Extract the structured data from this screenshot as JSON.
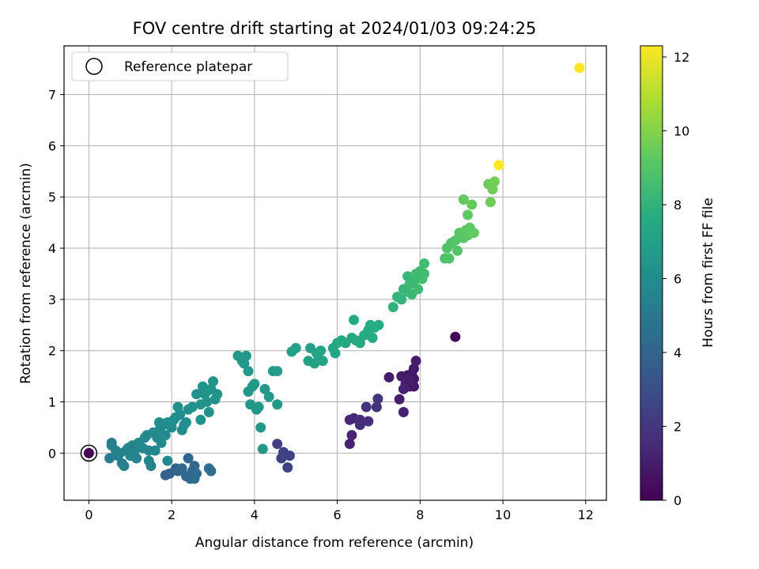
{
  "chart_data": {
    "type": "scatter",
    "title": "FOV centre drift starting at 2024/01/03 09:24:25",
    "xlabel": "Angular distance from reference (arcmin)",
    "ylabel": "Rotation from reference (arcmin)",
    "xlim": [
      -0.6,
      12.5
    ],
    "ylim": [
      -0.92,
      7.95
    ],
    "xticks": [
      0,
      2,
      4,
      6,
      8,
      10,
      12
    ],
    "yticks": [
      0,
      1,
      2,
      3,
      4,
      5,
      6,
      7
    ],
    "grid": true,
    "legend": {
      "position": "upper-left",
      "entries": [
        "Reference platepar"
      ]
    },
    "reference_point": {
      "x": 0,
      "y": 0
    },
    "colorbar": {
      "label": "Hours from first FF file",
      "range": [
        0,
        12.3
      ],
      "ticks": [
        0,
        2,
        4,
        6,
        8,
        10,
        12
      ],
      "colormap": "viridis"
    },
    "points": [
      [
        0,
        0,
        0.1
      ],
      [
        8.85,
        2.27,
        0.3
      ],
      [
        6.3,
        0.18,
        1.2
      ],
      [
        6.35,
        0.35,
        1.3
      ],
      [
        6.3,
        0.65,
        1.4
      ],
      [
        6.4,
        0.68,
        1.5
      ],
      [
        6.55,
        0.55,
        1.6
      ],
      [
        6.55,
        0.65,
        1.6
      ],
      [
        6.75,
        0.62,
        1.7
      ],
      [
        6.7,
        0.9,
        1.8
      ],
      [
        6.95,
        0.9,
        1.8
      ],
      [
        6.98,
        1.06,
        1.9
      ],
      [
        7.25,
        1.48,
        1.0
      ],
      [
        7.5,
        1.05,
        1.1
      ],
      [
        7.6,
        0.8,
        1.2
      ],
      [
        7.55,
        1.5,
        1.0
      ],
      [
        7.65,
        1.35,
        1.1
      ],
      [
        7.7,
        1.52,
        0.9
      ],
      [
        7.75,
        1.3,
        1.1
      ],
      [
        7.85,
        1.3,
        0.9
      ],
      [
        7.8,
        1.55,
        0.8
      ],
      [
        7.85,
        1.65,
        0.9
      ],
      [
        7.9,
        1.8,
        1.0
      ],
      [
        7.85,
        1.45,
        0.8
      ],
      [
        7.6,
        1.25,
        1.2
      ],
      [
        7.75,
        1.45,
        1.0
      ],
      [
        4.55,
        0.18,
        2.3
      ],
      [
        4.65,
        -0.1,
        2.4
      ],
      [
        4.7,
        0.02,
        2.4
      ],
      [
        4.8,
        -0.28,
        2.5
      ],
      [
        4.85,
        -0.05,
        2.4
      ],
      [
        1.85,
        -0.43,
        3.8
      ],
      [
        1.95,
        -0.4,
        3.9
      ],
      [
        2.1,
        -0.3,
        4.0
      ],
      [
        2.15,
        -0.35,
        4.1
      ],
      [
        2.25,
        -0.3,
        4.1
      ],
      [
        2.35,
        -0.45,
        4.3
      ],
      [
        2.4,
        -0.1,
        4.2
      ],
      [
        2.45,
        -0.5,
        4.4
      ],
      [
        2.5,
        -0.35,
        4.3
      ],
      [
        2.55,
        -0.5,
        4.4
      ],
      [
        2.55,
        -0.25,
        4.2
      ],
      [
        2.6,
        -0.4,
        4.4
      ],
      [
        2.9,
        -0.3,
        4.5
      ],
      [
        2.95,
        -0.35,
        4.5
      ],
      [
        0.5,
        -0.1,
        5.2
      ],
      [
        0.55,
        0.15,
        5.3
      ],
      [
        0.55,
        0.2,
        5.3
      ],
      [
        0.65,
        0.05,
        5.4
      ],
      [
        0.7,
        -0.05,
        5.4
      ],
      [
        0.75,
        0.0,
        5.5
      ],
      [
        0.8,
        -0.2,
        5.3
      ],
      [
        0.85,
        -0.25,
        5.4
      ],
      [
        0.9,
        0.05,
        5.5
      ],
      [
        0.95,
        0.1,
        5.5
      ],
      [
        1.0,
        -0.05,
        5.6
      ],
      [
        1.05,
        0.15,
        5.6
      ],
      [
        1.1,
        0.05,
        5.6
      ],
      [
        1.15,
        -0.1,
        5.5
      ],
      [
        1.2,
        0.2,
        5.7
      ],
      [
        1.3,
        0.1,
        5.7
      ],
      [
        1.35,
        0.3,
        5.8
      ],
      [
        1.4,
        0.35,
        5.8
      ],
      [
        1.45,
        -0.15,
        5.6
      ],
      [
        1.45,
        0.05,
        5.7
      ],
      [
        1.5,
        -0.25,
        5.5
      ],
      [
        1.55,
        0.4,
        5.9
      ],
      [
        1.6,
        0.05,
        5.7
      ],
      [
        1.65,
        0.3,
        5.8
      ],
      [
        1.7,
        0.45,
        5.9
      ],
      [
        1.7,
        0.6,
        6.0
      ],
      [
        1.75,
        0.2,
        5.8
      ],
      [
        1.8,
        0.55,
        5.9
      ],
      [
        1.85,
        0.35,
        5.9
      ],
      [
        1.9,
        0.6,
        6.0
      ],
      [
        1.9,
        -0.15,
        5.8
      ],
      [
        1.95,
        0.55,
        6.0
      ],
      [
        2.0,
        0.5,
        6.0
      ],
      [
        2.05,
        0.65,
        6.1
      ],
      [
        2.1,
        0.7,
        6.1
      ],
      [
        2.15,
        0.9,
        6.2
      ],
      [
        2.2,
        0.75,
        6.1
      ],
      [
        2.25,
        0.45,
        6.0
      ],
      [
        2.3,
        0.55,
        6.1
      ],
      [
        2.35,
        0.6,
        6.1
      ],
      [
        2.4,
        0.85,
        6.2
      ],
      [
        2.5,
        0.9,
        6.2
      ],
      [
        2.6,
        1.15,
        6.3
      ],
      [
        2.7,
        0.95,
        6.3
      ],
      [
        2.7,
        0.65,
        6.2
      ],
      [
        2.75,
        1.3,
        6.4
      ],
      [
        2.8,
        1.15,
        6.3
      ],
      [
        2.85,
        1.0,
        6.3
      ],
      [
        2.85,
        1.2,
        6.4
      ],
      [
        2.9,
        0.8,
        6.3
      ],
      [
        2.95,
        1.25,
        6.4
      ],
      [
        3.0,
        1.4,
        6.4
      ],
      [
        3.05,
        1.05,
        6.3
      ],
      [
        3.1,
        1.15,
        6.4
      ],
      [
        3.6,
        1.9,
        6.5
      ],
      [
        3.7,
        1.8,
        6.5
      ],
      [
        3.75,
        1.75,
        6.5
      ],
      [
        3.8,
        1.9,
        6.6
      ],
      [
        3.85,
        1.6,
        6.5
      ],
      [
        3.85,
        1.2,
        6.5
      ],
      [
        3.9,
        0.95,
        6.5
      ],
      [
        3.95,
        1.3,
        6.6
      ],
      [
        4.0,
        1.35,
        6.6
      ],
      [
        4.05,
        0.85,
        6.6
      ],
      [
        4.1,
        0.9,
        6.6
      ],
      [
        4.15,
        0.5,
        6.6
      ],
      [
        4.2,
        0.08,
        6.6
      ],
      [
        4.25,
        1.25,
        6.6
      ],
      [
        4.35,
        1.1,
        6.7
      ],
      [
        4.45,
        1.6,
        6.7
      ],
      [
        4.55,
        1.6,
        6.8
      ],
      [
        4.55,
        0.95,
        6.7
      ],
      [
        4.9,
        1.98,
        7.0
      ],
      [
        5.0,
        2.05,
        7.0
      ],
      [
        5.3,
        1.8,
        7.1
      ],
      [
        5.35,
        2.05,
        7.1
      ],
      [
        5.45,
        1.75,
        7.1
      ],
      [
        5.5,
        1.95,
        7.2
      ],
      [
        5.55,
        1.85,
        7.2
      ],
      [
        5.6,
        2.0,
        7.2
      ],
      [
        5.65,
        1.8,
        7.2
      ],
      [
        5.9,
        2.05,
        7.3
      ],
      [
        5.95,
        1.95,
        7.3
      ],
      [
        6.0,
        2.15,
        7.4
      ],
      [
        6.1,
        2.2,
        7.4
      ],
      [
        6.2,
        2.15,
        7.4
      ],
      [
        6.35,
        2.25,
        7.5
      ],
      [
        6.4,
        2.6,
        7.5
      ],
      [
        6.45,
        2.2,
        7.5
      ],
      [
        6.55,
        2.15,
        7.5
      ],
      [
        6.65,
        2.3,
        7.6
      ],
      [
        6.75,
        2.4,
        7.6
      ],
      [
        6.8,
        2.5,
        7.6
      ],
      [
        6.85,
        2.25,
        7.6
      ],
      [
        6.9,
        2.45,
        7.7
      ],
      [
        7.0,
        2.5,
        7.7
      ],
      [
        7.35,
        2.85,
        8.0
      ],
      [
        7.45,
        3.05,
        8.1
      ],
      [
        7.55,
        3.0,
        8.1
      ],
      [
        7.6,
        3.2,
        8.2
      ],
      [
        7.7,
        3.45,
        8.2
      ],
      [
        7.7,
        3.15,
        8.2
      ],
      [
        7.75,
        3.3,
        8.3
      ],
      [
        7.8,
        3.1,
        8.3
      ],
      [
        7.85,
        3.35,
        8.3
      ],
      [
        7.9,
        3.5,
        8.4
      ],
      [
        7.95,
        3.2,
        8.4
      ],
      [
        8.0,
        3.55,
        8.4
      ],
      [
        8.05,
        3.4,
        8.5
      ],
      [
        8.1,
        3.7,
        8.5
      ],
      [
        8.1,
        3.5,
        8.5
      ],
      [
        8.6,
        3.8,
        8.8
      ],
      [
        8.65,
        4.0,
        8.9
      ],
      [
        8.7,
        3.8,
        8.9
      ],
      [
        8.75,
        4.1,
        8.9
      ],
      [
        8.85,
        4.15,
        9.0
      ],
      [
        8.9,
        3.95,
        9.0
      ],
      [
        8.95,
        4.3,
        9.1
      ],
      [
        9.05,
        4.2,
        9.1
      ],
      [
        9.1,
        4.35,
        9.2
      ],
      [
        9.15,
        4.25,
        9.2
      ],
      [
        9.2,
        4.4,
        9.2
      ],
      [
        9.3,
        4.3,
        9.3
      ],
      [
        9.05,
        4.95,
        9.3
      ],
      [
        9.15,
        4.65,
        9.3
      ],
      [
        9.25,
        4.85,
        9.4
      ],
      [
        9.65,
        5.25,
        9.5
      ],
      [
        9.7,
        4.9,
        9.6
      ],
      [
        9.75,
        5.15,
        9.6
      ],
      [
        9.8,
        5.3,
        9.7
      ],
      [
        9.9,
        5.62,
        12.3
      ],
      [
        11.85,
        7.52,
        12.3
      ]
    ]
  }
}
